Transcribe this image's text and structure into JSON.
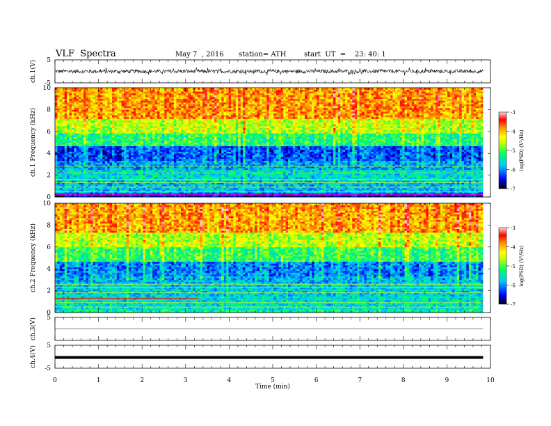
{
  "header": {
    "title": "VLF  Spectra",
    "date": "May 7  , 2016",
    "station": "station= ATH",
    "start": "start  UT  =    23: 40: 1"
  },
  "colorbar": {
    "label": "log(PSD) (V²/Hz)",
    "ticks": [
      "-3",
      "-4",
      "-5",
      "-6",
      "-7"
    ],
    "range": [
      -7,
      -3
    ],
    "colors": [
      "#000000",
      "#0000ff",
      "#00c8ff",
      "#00ff64",
      "#c8ff00",
      "#ffff00",
      "#ff8c00",
      "#ff0000",
      "#ffc8c8"
    ]
  },
  "chart_data": [
    {
      "type": "line",
      "panel": "ch1-waveform",
      "ylabel": "ch.1(V)",
      "ylim": [
        -5,
        5
      ],
      "yticks": [
        "5",
        "-5"
      ],
      "description_level": "noisy signal around 0 V, amplitude about ±1.5 V",
      "x_range": [
        0,
        9.8
      ]
    },
    {
      "type": "heatmap",
      "panel": "ch1-spectrogram",
      "ylabel": "ch.1  Frequency  (kHz)",
      "ylim": [
        0,
        10
      ],
      "yticks": [
        "0",
        "2",
        "4",
        "6",
        "8",
        "10"
      ],
      "bands": [
        {
          "from": 0.0,
          "to": 0.3,
          "level": -6.6
        },
        {
          "from": 0.3,
          "to": 1.5,
          "level": -5.8
        },
        {
          "from": 1.5,
          "to": 2.5,
          "level": -5.6
        },
        {
          "from": 2.5,
          "to": 3.3,
          "level": -5.9
        },
        {
          "from": 3.3,
          "to": 4.6,
          "level": -6.2
        },
        {
          "from": 4.6,
          "to": 5.8,
          "level": -5.2
        },
        {
          "from": 5.8,
          "to": 7.2,
          "level": -4.6
        },
        {
          "from": 7.2,
          "to": 10.0,
          "level": -3.9
        }
      ]
    },
    {
      "type": "heatmap",
      "panel": "ch2-spectrogram",
      "ylabel": "ch.2  Frequency  (kHz)",
      "ylim": [
        0,
        10
      ],
      "yticks": [
        "0",
        "2",
        "4",
        "6",
        "8",
        "10"
      ],
      "bands": [
        {
          "from": 0.0,
          "to": 0.4,
          "level": -5.4
        },
        {
          "from": 0.4,
          "to": 1.5,
          "level": -5.6
        },
        {
          "from": 1.5,
          "to": 2.6,
          "level": -5.7
        },
        {
          "from": 2.6,
          "to": 3.3,
          "level": -5.8
        },
        {
          "from": 3.3,
          "to": 4.6,
          "level": -6.0
        },
        {
          "from": 4.6,
          "to": 6.0,
          "level": -5.1
        },
        {
          "from": 6.0,
          "to": 7.4,
          "level": -4.6
        },
        {
          "from": 7.4,
          "to": 10.0,
          "level": -3.9
        }
      ]
    },
    {
      "type": "line",
      "panel": "ch3-waveform",
      "ylabel": "ch.3(V)",
      "ylim": [
        -5,
        5
      ],
      "yticks": [
        "5"
      ],
      "level": 0,
      "x_range": [
        0,
        9.8
      ]
    },
    {
      "type": "line",
      "panel": "ch4-waveform",
      "ylabel": "ch.4(V)",
      "ylim": [
        -5,
        5
      ],
      "yticks": [
        "5",
        "-5"
      ],
      "level": -0.3,
      "x_range": [
        0,
        9.8
      ]
    },
    {
      "panel": "time-axis",
      "xlabel": "Time  (min)",
      "xlim": [
        0,
        10
      ],
      "xticks": [
        "0",
        "1",
        "2",
        "3",
        "4",
        "5",
        "6",
        "7",
        "8",
        "9",
        "10"
      ]
    }
  ]
}
